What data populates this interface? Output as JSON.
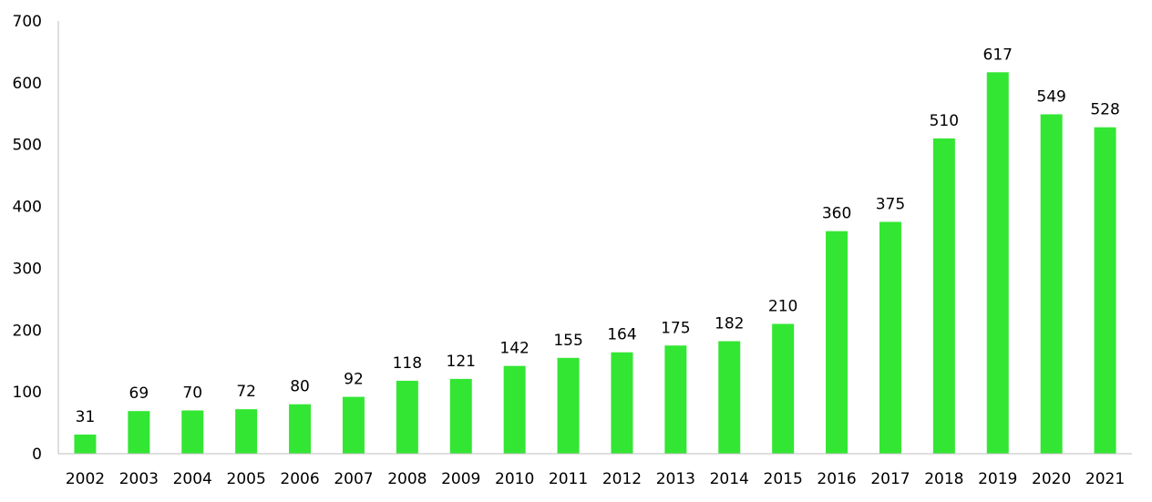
{
  "chart_data": {
    "type": "bar",
    "title": "",
    "xlabel": "",
    "ylabel": "",
    "categories": [
      "2002",
      "2003",
      "2004",
      "2005",
      "2006",
      "2007",
      "2008",
      "2009",
      "2010",
      "2011",
      "2012",
      "2013",
      "2014",
      "2015",
      "2016",
      "2017",
      "2018",
      "2019",
      "2020",
      "2021"
    ],
    "values": [
      31,
      69,
      70,
      72,
      80,
      92,
      118,
      121,
      142,
      155,
      164,
      175,
      182,
      210,
      360,
      375,
      510,
      617,
      549,
      528
    ],
    "ylim": [
      0,
      700
    ],
    "yticks": [
      0,
      100,
      200,
      300,
      400,
      500,
      600,
      700
    ],
    "grid": false,
    "legend": "none",
    "data_labels": true,
    "bar_color": "#33e633",
    "axis_color": "#bfbfbf"
  }
}
